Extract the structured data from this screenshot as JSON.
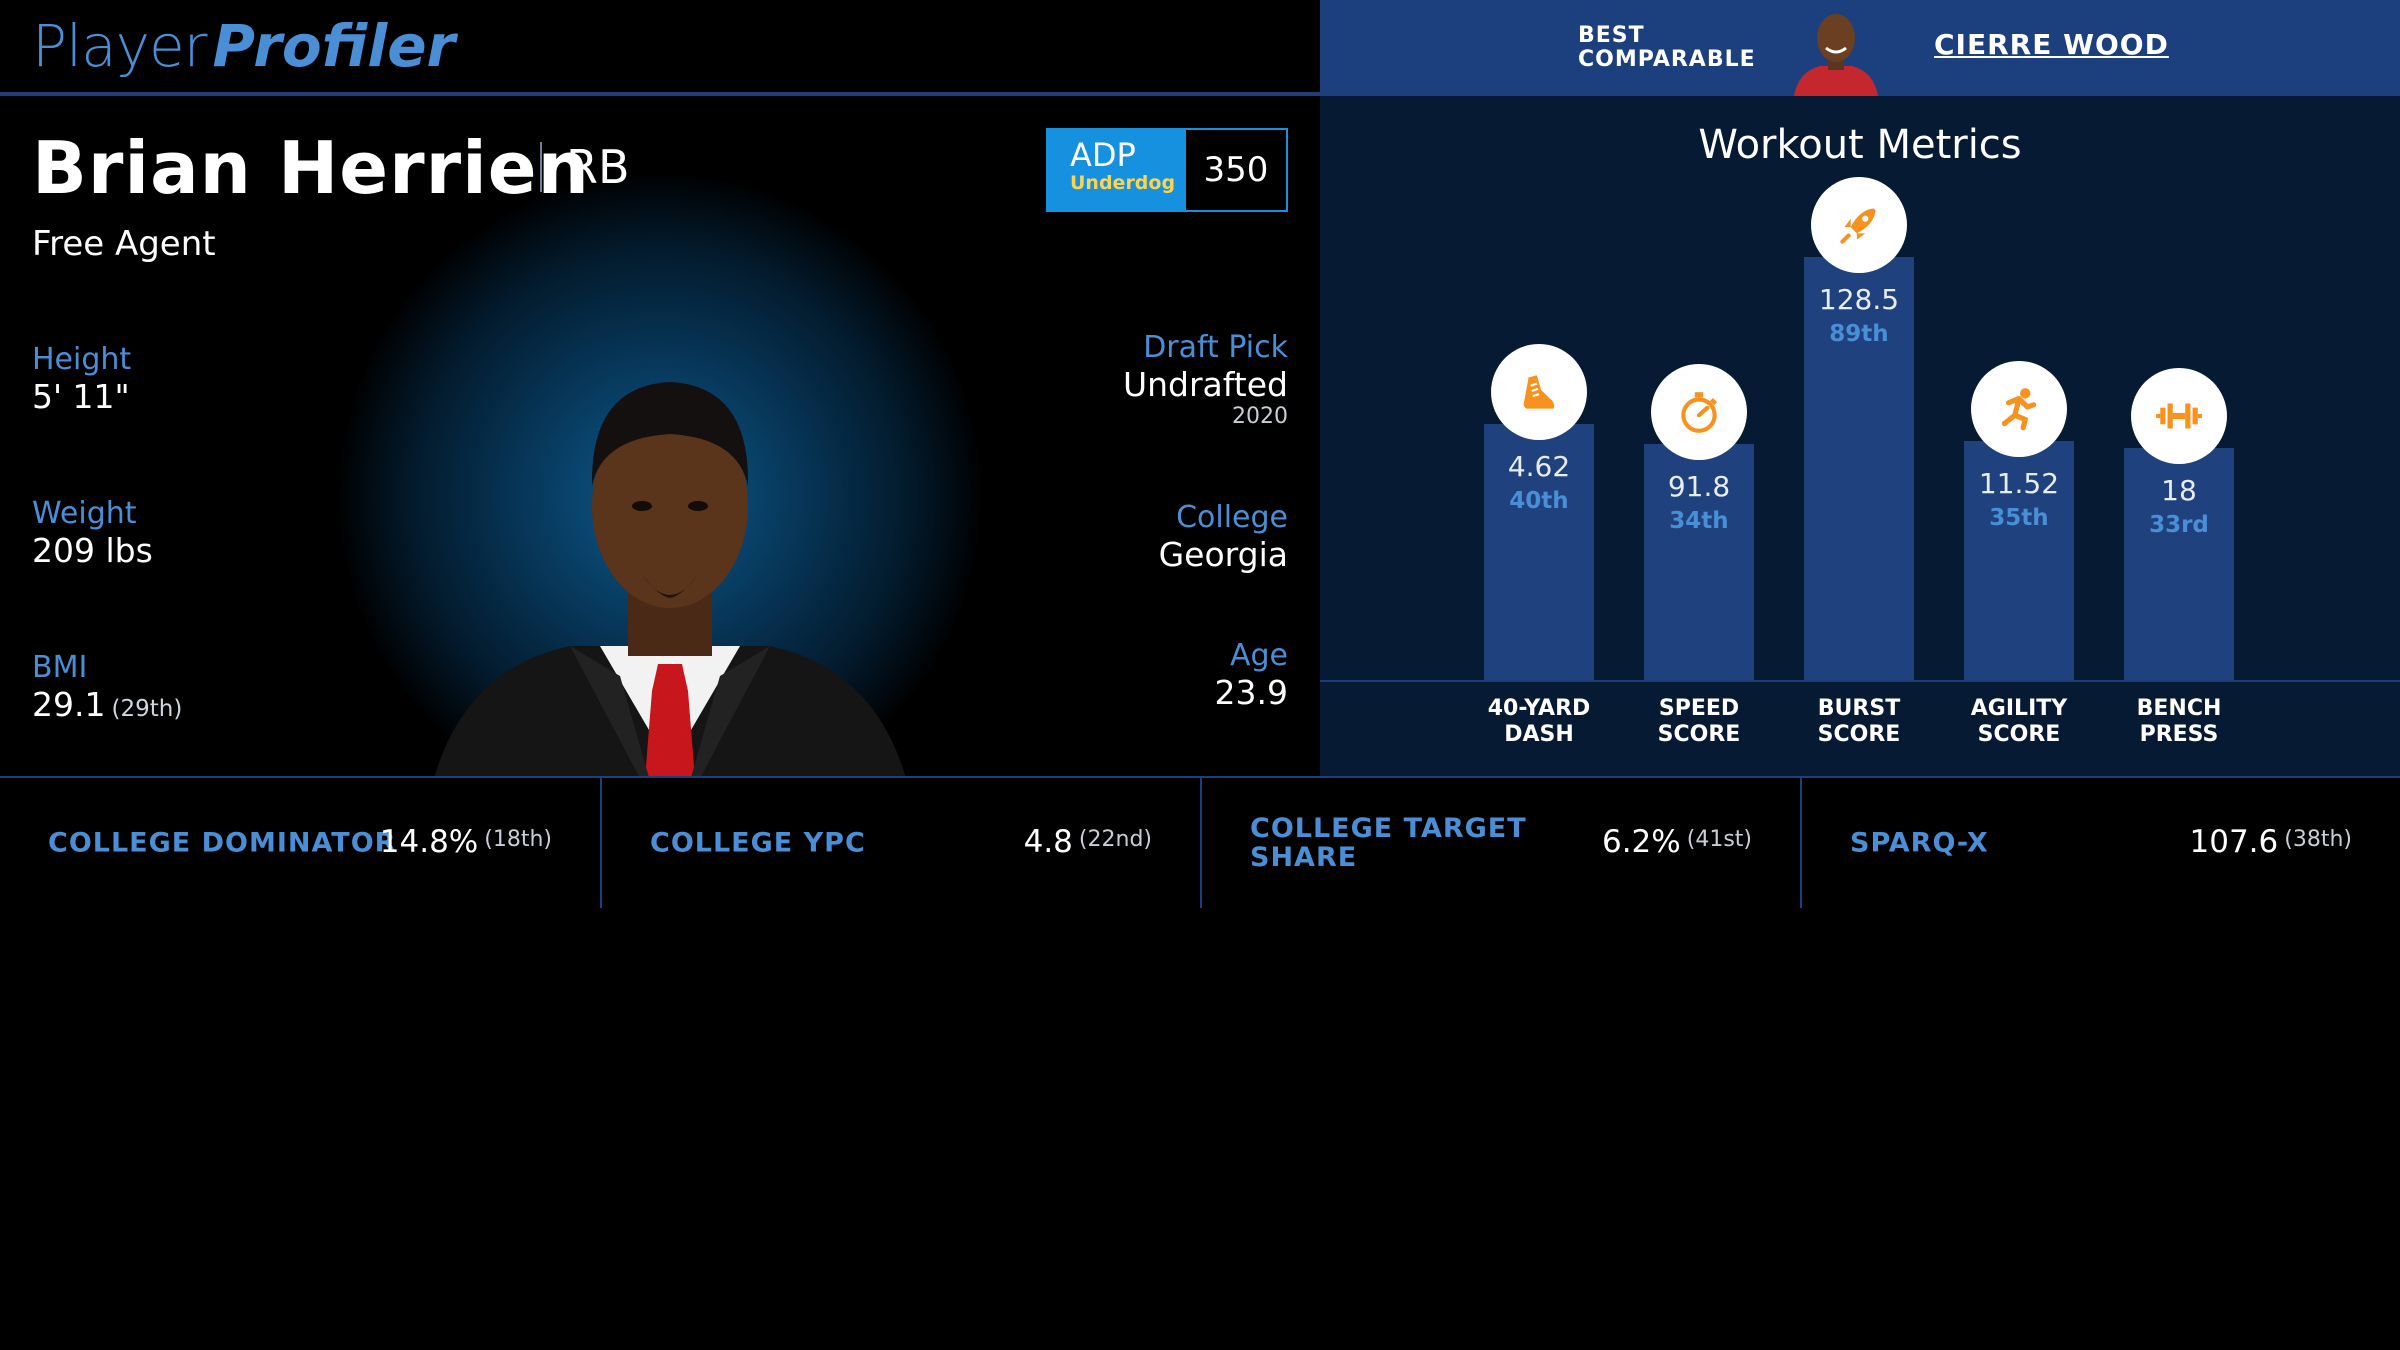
{
  "brand": {
    "part1": "Player",
    "part2": "Profiler"
  },
  "best_comparable": {
    "label_line1": "BEST",
    "label_line2": "COMPARABLE",
    "name": "CIERRE WOOD"
  },
  "player": {
    "name": "Brian Herrien",
    "position": "RB",
    "team": "Free Agent",
    "adp": {
      "title": "ADP",
      "source": "Underdog",
      "value": "350"
    },
    "height": {
      "label": "Height",
      "value": "5' 11\""
    },
    "weight": {
      "label": "Weight",
      "value": "209 lbs"
    },
    "bmi": {
      "label": "BMI",
      "value": "29.1",
      "rank": "(29th)"
    },
    "draft_pick": {
      "label": "Draft Pick",
      "value": "Undrafted",
      "year": "2020"
    },
    "college": {
      "label": "College",
      "value": "Georgia"
    },
    "age": {
      "label": "Age",
      "value": "23.9"
    }
  },
  "workout": {
    "title": "Workout Metrics",
    "metrics": [
      {
        "label_line1": "40-YARD",
        "label_line2": "DASH",
        "value": "4.62",
        "rank": "40th",
        "percentile": 40,
        "icon": "shoe-icon"
      },
      {
        "label_line1": "SPEED",
        "label_line2": "SCORE",
        "value": "91.8",
        "rank": "34th",
        "percentile": 34,
        "icon": "stopwatch-icon"
      },
      {
        "label_line1": "BURST",
        "label_line2": "SCORE",
        "value": "128.5",
        "rank": "89th",
        "percentile": 89,
        "icon": "rocket-icon"
      },
      {
        "label_line1": "AGILITY",
        "label_line2": "SCORE",
        "value": "11.52",
        "rank": "35th",
        "percentile": 35,
        "icon": "runner-icon"
      },
      {
        "label_line1": "BENCH",
        "label_line2": "PRESS",
        "value": "18",
        "rank": "33rd",
        "percentile": 33,
        "icon": "dumbbell-icon"
      }
    ],
    "colors": {
      "bar": "#1f427f",
      "icon": "#f7921e"
    }
  },
  "bottom_stats": [
    {
      "label_line1": "COLLEGE DOMINATOR",
      "label_line2": "",
      "value": "14.8%",
      "rank": "(18th)"
    },
    {
      "label_line1": "COLLEGE YPC",
      "label_line2": "",
      "value": "4.8",
      "rank": "(22nd)"
    },
    {
      "label_line1": "COLLEGE TARGET",
      "label_line2": "SHARE",
      "value": "6.2%",
      "rank": "(41st)"
    },
    {
      "label_line1": "SPARQ-X",
      "label_line2": "",
      "value": "107.6",
      "rank": "(38th)"
    }
  ]
}
